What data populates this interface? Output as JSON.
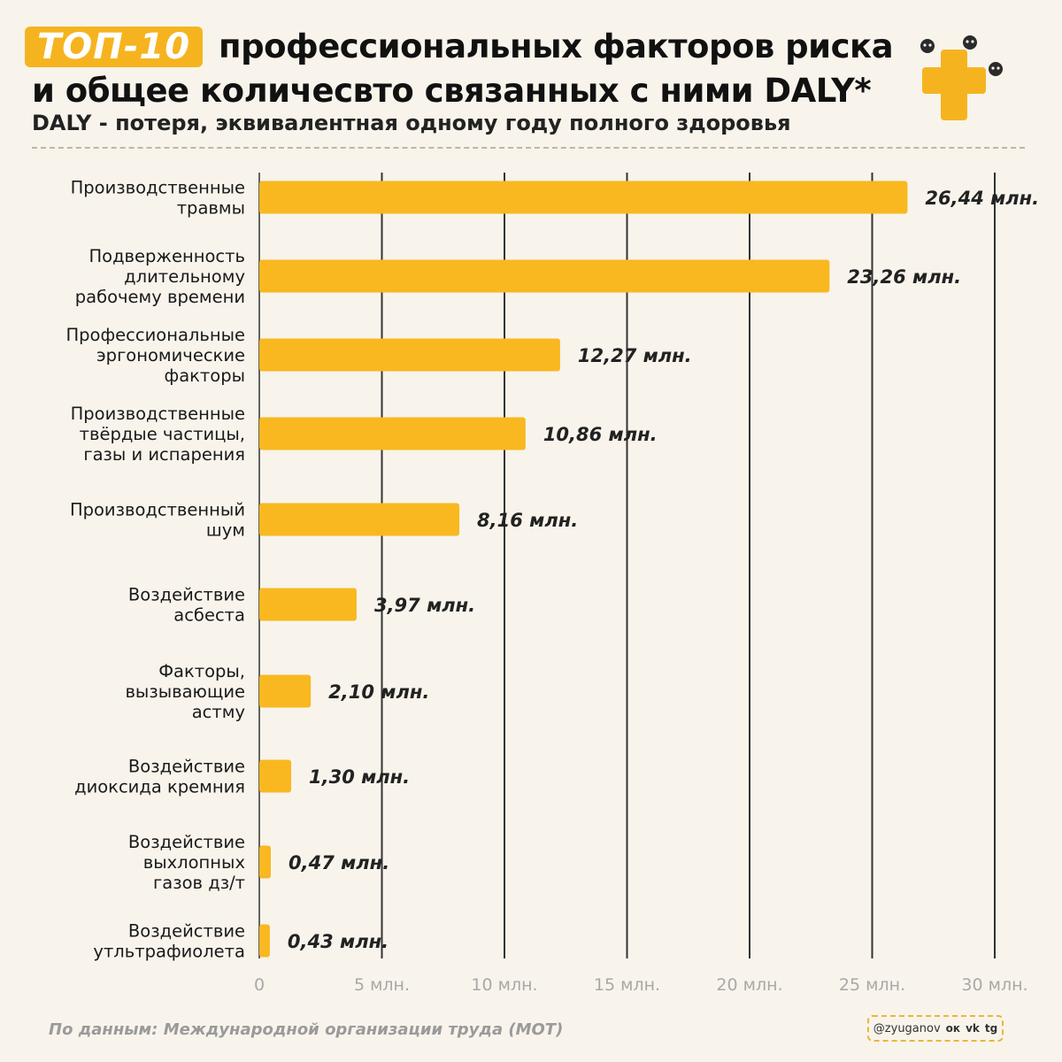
{
  "header": {
    "badge": "ТОП-10",
    "title_line1": "профессиональных факторов риска",
    "title_line2": "и общее количесвто связанных с ними DALY*",
    "subtitle": "DALY - потеря, эквивалентная одному году полного здоровья"
  },
  "chart_data": {
    "type": "bar",
    "orientation": "horizontal",
    "categories": [
      [
        "Производственные",
        "травмы"
      ],
      [
        "Подверженность",
        "длительному",
        "рабочему времени"
      ],
      [
        "Профессиональные",
        "эргономические",
        "факторы"
      ],
      [
        "Производственные",
        "твёрдые частицы,",
        "газы и испарения"
      ],
      [
        "Производственный",
        "шум"
      ],
      [
        "Воздействие",
        "асбеста"
      ],
      [
        "Факторы,",
        "вызывающие",
        "астму"
      ],
      [
        "Воздействие",
        "диоксида кремния"
      ],
      [
        "Воздействие",
        "выхлопных",
        "газов дз/т"
      ],
      [
        "Воздействие",
        "утльтрафиолета"
      ]
    ],
    "values": [
      26.44,
      23.26,
      12.27,
      10.86,
      8.16,
      3.97,
      2.1,
      1.3,
      0.47,
      0.43
    ],
    "value_labels": [
      "26,44 млн.",
      "23,26 млн.",
      "12,27 млн.",
      "10,86 млн.",
      "8,16 млн.",
      "3,97 млн.",
      "2,10 млн.",
      "1,30 млн.",
      "0,47 млн.",
      "0,43 млн."
    ],
    "xlim": [
      0,
      30
    ],
    "xticks": [
      0,
      5,
      10,
      15,
      20,
      25,
      30
    ],
    "xtick_labels": [
      "0",
      "5 млн.",
      "10 млн.",
      "15 млн.",
      "20 млн.",
      "25 млн.",
      "30 млн."
    ],
    "grid": true,
    "bar_color": "#f9b820"
  },
  "footer": {
    "source": "По данным: Международной организации труда (МОТ)",
    "handle": "@zyuganov",
    "social_ok": "ок",
    "social_vk": "vk",
    "social_tg": "tg"
  },
  "colors": {
    "accent": "#f5b41f",
    "background": "#f8f4ec",
    "grid": "#333333"
  }
}
